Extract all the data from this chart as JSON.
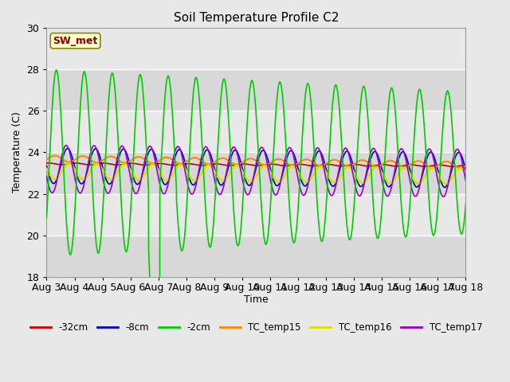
{
  "title": "Soil Temperature Profile C2",
  "xlabel": "Time",
  "ylabel": "Temperature (C)",
  "ylim": [
    18,
    30
  ],
  "xlim_days": [
    3,
    18
  ],
  "x_ticks": [
    3,
    4,
    5,
    6,
    7,
    8,
    9,
    10,
    11,
    12,
    13,
    14,
    15,
    16,
    17,
    18
  ],
  "x_tick_labels": [
    "Aug 3",
    "Aug 4",
    "Aug 5",
    "Aug 6",
    "Aug 7",
    "Aug 8",
    "Aug 9",
    "Aug 10",
    "Aug 11",
    "Aug 12",
    "Aug 13",
    "Aug 14",
    "Aug 15",
    "Aug 16",
    "Aug 17",
    "Aug 18"
  ],
  "y_ticks": [
    18,
    20,
    22,
    24,
    26,
    28,
    30
  ],
  "background_color": "#e8e8e8",
  "plot_bg_color": "#e8e8e8",
  "grid_color": "#ffffff",
  "series": {
    "-32cm": {
      "color": "#cc0000",
      "linewidth": 1.2
    },
    "-8cm": {
      "color": "#0000cc",
      "linewidth": 1.2
    },
    "-2cm": {
      "color": "#00cc00",
      "linewidth": 1.2
    },
    "TC_temp15": {
      "color": "#ff8800",
      "linewidth": 1.5
    },
    "TC_temp16": {
      "color": "#dddd00",
      "linewidth": 1.8
    },
    "TC_temp17": {
      "color": "#9900cc",
      "linewidth": 1.2
    }
  },
  "legend_label_text": "SW_met",
  "legend_text_color": "#880000",
  "legend_bg": "#ffffcc",
  "legend_border": "#888800",
  "figsize": [
    6.4,
    4.8
  ],
  "dpi": 100
}
